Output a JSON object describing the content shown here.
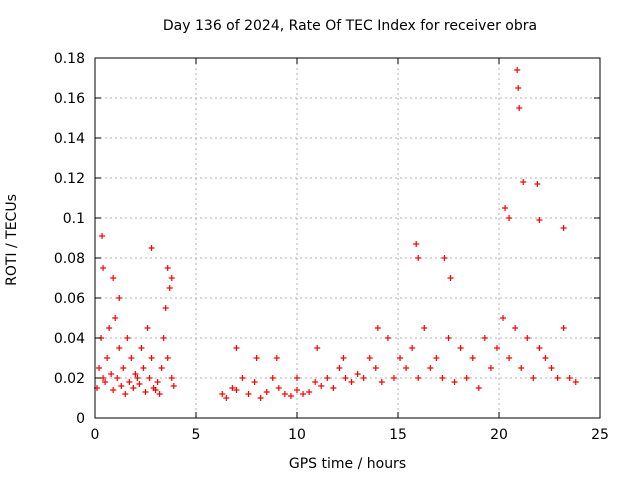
{
  "chart_data": {
    "type": "scatter",
    "title": "Day 136 of 2024, Rate Of TEC Index for receiver obra",
    "xlabel": "GPS time / hours",
    "ylabel": "ROTI / TECUs",
    "xlim": [
      0,
      25
    ],
    "ylim": [
      0,
      0.18
    ],
    "xticks": [
      "0",
      "5",
      "10",
      "15",
      "20",
      "25"
    ],
    "yticks": [
      "0",
      "0.02",
      "0.04",
      "0.06",
      "0.08",
      "0.1",
      "0.12",
      "0.14",
      "0.16",
      "0.18"
    ],
    "grid": true,
    "marker": "+",
    "color": "#ff0000",
    "series": [
      {
        "x": [
          0.1,
          0.2,
          0.3,
          0.4,
          0.5,
          0.6,
          0.7,
          0.8,
          0.9,
          1.0,
          1.1,
          1.2,
          1.3,
          1.4,
          1.5,
          1.6,
          1.7,
          1.8,
          1.9,
          2.0,
          2.1,
          2.2,
          2.3,
          2.4,
          2.5,
          2.6,
          2.7,
          2.8,
          2.9,
          3.0,
          3.1,
          3.2,
          3.3,
          3.4,
          3.5,
          3.6,
          3.7,
          3.8,
          3.9,
          0.35,
          0.4,
          0.9,
          1.2,
          2.8,
          3.6,
          3.8,
          6.3,
          6.5,
          6.8,
          7.0,
          7.3,
          7.6,
          7.9,
          8.2,
          8.5,
          8.8,
          9.1,
          9.4,
          9.7,
          10.0,
          10.3,
          10.6,
          10.9,
          11.2,
          11.5,
          11.8,
          12.1,
          12.4,
          12.7,
          13.0,
          13.3,
          13.6,
          13.9,
          14.2,
          14.5,
          14.8,
          15.1,
          15.4,
          15.7,
          16.0,
          16.3,
          16.6,
          16.9,
          17.2,
          17.5,
          17.8,
          18.1,
          18.4,
          18.7,
          19.0,
          19.3,
          19.6,
          19.9,
          20.2,
          20.5,
          20.8,
          21.1,
          21.4,
          21.7,
          22.0,
          22.3,
          22.6,
          22.9,
          23.2,
          23.5,
          23.8,
          15.9,
          16.0,
          17.3,
          17.6,
          20.3,
          20.5,
          20.9,
          20.95,
          21.0,
          21.2,
          21.9,
          22.0,
          23.2,
          12.3,
          14.0,
          7.0,
          8.0,
          9.0,
          10.0,
          11.0
        ],
        "y": [
          0.015,
          0.025,
          0.04,
          0.02,
          0.018,
          0.03,
          0.045,
          0.022,
          0.014,
          0.05,
          0.02,
          0.035,
          0.016,
          0.025,
          0.012,
          0.04,
          0.018,
          0.03,
          0.015,
          0.022,
          0.02,
          0.017,
          0.035,
          0.025,
          0.013,
          0.045,
          0.02,
          0.03,
          0.015,
          0.014,
          0.018,
          0.012,
          0.025,
          0.04,
          0.055,
          0.03,
          0.065,
          0.02,
          0.016,
          0.091,
          0.075,
          0.07,
          0.06,
          0.085,
          0.075,
          0.07,
          0.012,
          0.01,
          0.015,
          0.014,
          0.02,
          0.012,
          0.018,
          0.01,
          0.013,
          0.02,
          0.015,
          0.012,
          0.011,
          0.014,
          0.012,
          0.013,
          0.018,
          0.016,
          0.02,
          0.015,
          0.025,
          0.02,
          0.018,
          0.022,
          0.02,
          0.03,
          0.025,
          0.018,
          0.04,
          0.02,
          0.03,
          0.025,
          0.035,
          0.02,
          0.045,
          0.025,
          0.03,
          0.02,
          0.04,
          0.018,
          0.035,
          0.02,
          0.03,
          0.015,
          0.04,
          0.025,
          0.035,
          0.05,
          0.03,
          0.045,
          0.025,
          0.04,
          0.02,
          0.035,
          0.03,
          0.025,
          0.02,
          0.045,
          0.02,
          0.018,
          0.087,
          0.08,
          0.08,
          0.07,
          0.105,
          0.1,
          0.174,
          0.165,
          0.155,
          0.118,
          0.117,
          0.099,
          0.095,
          0.03,
          0.045,
          0.035,
          0.03,
          0.03,
          0.02,
          0.035
        ]
      }
    ]
  }
}
